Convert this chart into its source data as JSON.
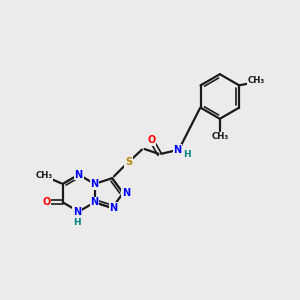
{
  "bg_color": "#ebebeb",
  "bond_color": "#1a1a1a",
  "N_color": "#0000ff",
  "O_color": "#ff0000",
  "S_color": "#b8860b",
  "NH_color": "#008080",
  "figsize": [
    3.0,
    3.0
  ],
  "dpi": 100,
  "xlim": [
    0,
    10
  ],
  "ylim": [
    0,
    10
  ]
}
